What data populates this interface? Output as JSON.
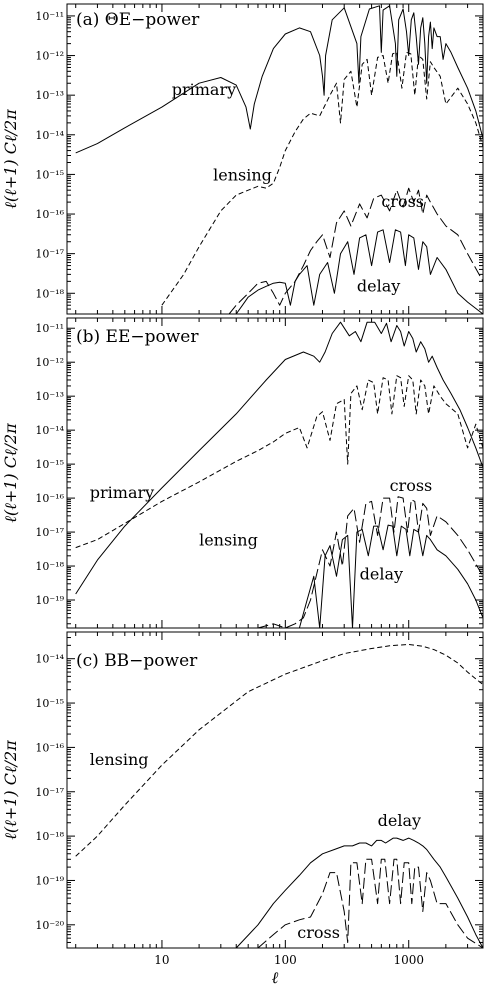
{
  "chart_data": [
    {
      "type": "line",
      "panel_label": "(a) ΘE−power",
      "ylabel": "ℓ(ℓ+1) Cℓ/2π",
      "xlabel": "",
      "xscale": "log",
      "yscale": "log",
      "xlim": [
        1.7,
        4000
      ],
      "ylim": [
        3e-19,
        2e-11
      ],
      "yticks": [
        1e-18,
        1e-17,
        1e-16,
        1e-15,
        1e-14,
        1e-13,
        1e-12,
        1e-11
      ],
      "ytick_labels": [
        "10⁻¹⁸",
        "10⁻¹⁷",
        "10⁻¹⁶",
        "10⁻¹⁵",
        "10⁻¹⁴",
        "10⁻¹³",
        "10⁻¹²",
        "10⁻¹¹"
      ],
      "series": [
        {
          "name": "primary",
          "style": "solid",
          "x": [
            2,
            3,
            5,
            10,
            20,
            30,
            40,
            48,
            52,
            56,
            65,
            80,
            100,
            130,
            160,
            190,
            200,
            206,
            212,
            240,
            300,
            380,
            395,
            410,
            480,
            580,
            600,
            620,
            700,
            780,
            800,
            830,
            900,
            960,
            1000,
            1050,
            1100,
            1150,
            1200,
            1250,
            1300,
            1350,
            1400,
            1450,
            1500,
            1550,
            1600,
            1700,
            1800,
            1900,
            2000,
            2200,
            2500,
            3000,
            3500,
            4000
          ],
          "y": [
            3.5e-15,
            6e-15,
            1.5e-14,
            5e-14,
            2e-13,
            2.8e-13,
            1.8e-13,
            5e-14,
            1.4e-14,
            6e-14,
            3e-13,
            1.5e-12,
            3.5e-12,
            5e-12,
            4e-12,
            1e-12,
            3e-13,
            1e-13,
            1e-12,
            8e-12,
            1.6e-11,
            2e-12,
            2e-13,
            3e-12,
            1.5e-11,
            1.8e-11,
            1.2e-12,
            1.4e-11,
            1.8e-11,
            2e-12,
            3e-13,
            8e-12,
            1.5e-11,
            4e-12,
            1e-12,
            8e-12,
            1.2e-11,
            3e-12,
            6e-13,
            5e-12,
            9e-12,
            2e-12,
            2e-13,
            3e-12,
            7e-12,
            1.5e-12,
            5e-12,
            3e-12,
            3e-12,
            8e-13,
            2e-12,
            1.2e-12,
            5e-13,
            1.5e-13,
            4e-14,
            8e-15
          ]
        },
        {
          "name": "lensing",
          "style": "dashed",
          "x": [
            10,
            15,
            20,
            30,
            40,
            50,
            60,
            70,
            80,
            90,
            100,
            120,
            140,
            160,
            190,
            230,
            260,
            280,
            300,
            340,
            380,
            420,
            460,
            500,
            560,
            620,
            680,
            740,
            800,
            880,
            960,
            1040,
            1120,
            1200,
            1300,
            1400,
            1500,
            1600,
            1800,
            2000,
            2500,
            3000,
            3500,
            4000
          ],
          "y": [
            5e-19,
            3e-18,
            1.5e-17,
            1.2e-16,
            3e-16,
            4e-16,
            5e-16,
            4.5e-16,
            6e-16,
            1.5e-15,
            4e-15,
            1.2e-14,
            2.5e-14,
            3.5e-14,
            3e-14,
            1e-13,
            2e-13,
            2e-14,
            2.5e-13,
            4e-13,
            5e-14,
            6e-13,
            8e-13,
            1e-13,
            9e-13,
            1e-12,
            2e-13,
            1.1e-12,
            1.2e-12,
            1.5e-13,
            1.2e-12,
            1.1e-12,
            1e-13,
            1e-12,
            8e-13,
            8e-14,
            7e-13,
            5e-13,
            3e-13,
            6e-14,
            1.5e-13,
            6e-14,
            2e-14,
            5e-15
          ]
        },
        {
          "name": "cross",
          "style": "long-dashed",
          "x": [
            35,
            40,
            50,
            60,
            70,
            80,
            90,
            100,
            120,
            140,
            160,
            180,
            200,
            230,
            260,
            300,
            340,
            400,
            460,
            520,
            600,
            700,
            800,
            900,
            1000,
            1100,
            1200,
            1300,
            1400,
            1500,
            1700,
            2000,
            2500,
            3000,
            4000
          ],
          "y": [
            3e-19,
            5e-19,
            1e-18,
            1.8e-18,
            2e-18,
            1e-18,
            5e-19,
            1e-18,
            2e-18,
            5e-18,
            1.2e-17,
            2e-17,
            3e-17,
            8e-18,
            6e-17,
            1.2e-16,
            5e-17,
            1.8e-16,
            8e-17,
            2.5e-16,
            3e-16,
            1.2e-16,
            4e-16,
            1.5e-16,
            4.5e-16,
            2e-16,
            4e-16,
            1e-16,
            3e-16,
            2e-16,
            1e-16,
            5e-17,
            3e-17,
            1e-17,
            2e-18
          ]
        },
        {
          "name": "delay",
          "style": "solid",
          "x": [
            40,
            45,
            50,
            60,
            70,
            80,
            90,
            100,
            110,
            120,
            130,
            150,
            170,
            190,
            220,
            250,
            280,
            320,
            360,
            400,
            450,
            500,
            560,
            620,
            700,
            780,
            860,
            940,
            1000,
            1100,
            1200,
            1300,
            1400,
            1500,
            1700,
            2000,
            2500,
            3000,
            4000
          ],
          "y": [
            3e-19,
            5e-19,
            8e-19,
            1.2e-18,
            1.5e-18,
            1.8e-18,
            1.9e-18,
            1.8e-18,
            5e-19,
            2e-18,
            3e-18,
            5e-18,
            5e-19,
            3e-18,
            6e-18,
            1e-18,
            1e-17,
            2e-17,
            3e-18,
            2.5e-17,
            3e-17,
            5e-18,
            3.5e-17,
            4e-17,
            6e-18,
            4e-17,
            3.5e-17,
            5e-18,
            3e-17,
            2.5e-17,
            4e-18,
            2e-17,
            1.5e-17,
            3e-18,
            8e-18,
            4e-18,
            1e-18,
            6e-19,
            3e-19
          ]
        }
      ],
      "annotations": [
        {
          "text": "primary",
          "x": 12,
          "y": 1e-13
        },
        {
          "text": "lensing",
          "x": 26,
          "y": 7e-16
        },
        {
          "text": "cross",
          "x": 600,
          "y": 1.5e-16
        },
        {
          "text": "delay",
          "x": 380,
          "y": 1.1e-18
        }
      ]
    },
    {
      "type": "line",
      "panel_label": "(b) EE−power",
      "ylabel": "ℓ(ℓ+1) Cℓ/2π",
      "xlabel": "",
      "xscale": "log",
      "yscale": "log",
      "xlim": [
        1.7,
        4000
      ],
      "ylim": [
        1.5e-20,
        2e-11
      ],
      "yticks": [
        1e-19,
        1e-18,
        1e-17,
        1e-16,
        1e-15,
        1e-14,
        1e-13,
        1e-12,
        1e-11
      ],
      "ytick_labels": [
        "10⁻¹⁹",
        "10⁻¹⁸",
        "10⁻¹⁷",
        "10⁻¹⁶",
        "10⁻¹⁵",
        "10⁻¹⁴",
        "10⁻¹³",
        "10⁻¹²",
        "10⁻¹¹"
      ],
      "series": [
        {
          "name": "primary",
          "style": "solid",
          "x": [
            2,
            3,
            5,
            10,
            20,
            40,
            70,
            100,
            140,
            170,
            190,
            210,
            240,
            280,
            330,
            370,
            410,
            460,
            530,
            600,
            660,
            720,
            800,
            860,
            920,
            1000,
            1080,
            1150,
            1250,
            1350,
            1450,
            1550,
            1700,
            1900,
            2200,
            2600,
            3000,
            3500,
            4000
          ],
          "y": [
            1.5e-19,
            1.5e-18,
            1.5e-17,
            2e-16,
            2.5e-15,
            3e-14,
            3e-13,
            1.2e-12,
            2e-12,
            1.5e-12,
            1e-12,
            2e-12,
            7e-12,
            1.5e-11,
            6e-12,
            8e-12,
            4e-12,
            1.5e-11,
            1.5e-11,
            7e-12,
            1.4e-11,
            4e-12,
            1.2e-11,
            8e-12,
            3e-12,
            8e-12,
            5e-12,
            2e-12,
            4e-12,
            2.5e-12,
            1e-12,
            1.5e-12,
            7e-13,
            3e-13,
            1.2e-13,
            4e-14,
            1.2e-14,
            3e-15,
            8e-16
          ]
        },
        {
          "name": "lensing",
          "style": "dashed",
          "x": [
            2,
            3,
            5,
            10,
            20,
            40,
            60,
            80,
            100,
            130,
            150,
            180,
            200,
            230,
            260,
            300,
            320,
            340,
            380,
            420,
            470,
            520,
            560,
            620,
            680,
            730,
            800,
            860,
            920,
            1000,
            1080,
            1150,
            1250,
            1350,
            1450,
            1600,
            1800,
            2000,
            2500,
            3000,
            3500,
            4000
          ],
          "y": [
            3.5e-18,
            6e-18,
            1.8e-17,
            8e-17,
            3e-16,
            1.2e-15,
            2.5e-15,
            4.5e-15,
            8e-15,
            1.2e-14,
            3e-15,
            2.5e-14,
            3.5e-14,
            5e-15,
            6e-14,
            8e-14,
            1e-15,
            1.2e-13,
            2e-13,
            4e-14,
            3e-13,
            2.5e-13,
            3e-14,
            3.5e-13,
            3e-13,
            3e-14,
            4e-13,
            3.5e-13,
            5e-14,
            4e-13,
            3e-13,
            3e-14,
            3e-13,
            2e-13,
            3e-14,
            2e-13,
            1e-13,
            6e-14,
            3e-14,
            3e-15,
            1.5e-14,
            3e-15
          ]
        },
        {
          "name": "cross",
          "style": "long-dashed",
          "x": [
            45,
            60,
            80,
            100,
            120,
            140,
            160,
            180,
            200,
            230,
            260,
            290,
            320,
            360,
            400,
            450,
            500,
            560,
            620,
            700,
            760,
            820,
            900,
            980,
            1050,
            1120,
            1200,
            1300,
            1400,
            1500,
            1700,
            2000,
            2500,
            3000,
            4000
          ],
          "y": [
            1.5e-20,
            1.5e-20,
            2e-20,
            1.5e-20,
            2e-20,
            3e-20,
            1e-19,
            6e-19,
            3e-18,
            1e-18,
            1e-17,
            1e-18,
            3e-17,
            5e-17,
            5e-18,
            7e-17,
            8e-17,
            8e-18,
            1e-16,
            1e-16,
            1e-17,
            1.1e-16,
            1e-16,
            1e-17,
            9e-17,
            8e-17,
            1e-17,
            7e-17,
            5e-17,
            8e-18,
            3e-17,
            2e-17,
            8e-18,
            3e-18,
            5e-19
          ]
        },
        {
          "name": "delay",
          "style": "solid",
          "x": [
            130,
            150,
            170,
            190,
            210,
            230,
            260,
            290,
            320,
            350,
            380,
            420,
            470,
            520,
            560,
            620,
            680,
            740,
            800,
            870,
            950,
            1020,
            1100,
            1200,
            1300,
            1400,
            1500,
            1700,
            2000,
            2500,
            3000,
            3500,
            4000
          ],
          "y": [
            1.5e-20,
            1e-19,
            5e-19,
            1.5e-20,
            2e-18,
            4e-18,
            5e-19,
            6e-18,
            8e-18,
            1.5e-20,
            1e-17,
            1.2e-17,
            2e-18,
            1.5e-17,
            1.5e-17,
            3e-18,
            1.6e-17,
            1.5e-17,
            2e-18,
            1.5e-17,
            1.2e-17,
            2e-18,
            1.2e-17,
            1e-17,
            2e-18,
            8e-18,
            6e-18,
            3e-18,
            2e-18,
            8e-19,
            3e-19,
            1e-19,
            3e-20
          ]
        }
      ],
      "annotations": [
        {
          "text": "primary",
          "x": 2.6,
          "y": 1e-16
        },
        {
          "text": "lensing",
          "x": 20,
          "y": 4e-18
        },
        {
          "text": "cross",
          "x": 700,
          "y": 1.6e-16
        },
        {
          "text": "delay",
          "x": 400,
          "y": 4e-19
        }
      ]
    },
    {
      "type": "line",
      "panel_label": "(c) BB−power",
      "ylabel": "ℓ(ℓ+1) Cℓ/2π",
      "xlabel": "ℓ",
      "xscale": "log",
      "yscale": "log",
      "xlim": [
        1.7,
        4000
      ],
      "ylim": [
        3e-21,
        4e-14
      ],
      "xticks": [
        10,
        100,
        1000
      ],
      "xtick_labels": [
        "10",
        "100",
        "1000"
      ],
      "yticks": [
        1e-20,
        1e-19,
        1e-18,
        1e-17,
        1e-16,
        1e-15,
        1e-14
      ],
      "ytick_labels": [
        "10⁻²⁰",
        "10⁻¹⁹",
        "10⁻¹⁸",
        "10⁻¹⁷",
        "10⁻¹⁶",
        "10⁻¹⁵",
        "10⁻¹⁴"
      ],
      "series": [
        {
          "name": "lensing",
          "style": "dashed",
          "x": [
            2,
            3,
            5,
            10,
            20,
            50,
            100,
            200,
            300,
            500,
            700,
            1000,
            1300,
            1600,
            2000,
            2500,
            3000,
            3500,
            4000
          ],
          "y": [
            3.5e-19,
            1e-18,
            5e-18,
            4e-17,
            2.5e-16,
            1.8e-15,
            4.5e-15,
            9e-15,
            1.3e-14,
            1.7e-14,
            1.95e-14,
            2.1e-14,
            1.9e-14,
            1.6e-14,
            1.2e-14,
            8e-15,
            5e-15,
            3.5e-15,
            2.6e-15
          ]
        },
        {
          "name": "delay",
          "style": "solid",
          "x": [
            40,
            60,
            80,
            100,
            130,
            160,
            200,
            250,
            300,
            350,
            400,
            450,
            500,
            550,
            600,
            650,
            700,
            750,
            800,
            900,
            1000,
            1100,
            1200,
            1300,
            1400,
            1600,
            1800,
            2000,
            2500,
            3000,
            3500,
            4000
          ],
          "y": [
            3e-21,
            1e-20,
            3e-20,
            6e-20,
            1.3e-19,
            2.5e-19,
            4e-19,
            5e-19,
            6e-19,
            6e-19,
            7e-19,
            7e-19,
            6e-19,
            8e-19,
            8e-19,
            7e-19,
            8e-19,
            9e-19,
            9e-19,
            8e-19,
            9e-19,
            8e-19,
            7e-19,
            6e-19,
            5e-19,
            3e-19,
            2e-19,
            1.2e-19,
            4e-20,
            1.5e-20,
            6e-21,
            3e-21
          ]
        },
        {
          "name": "cross",
          "style": "long-dashed",
          "x": [
            60,
            80,
            100,
            130,
            160,
            200,
            230,
            260,
            300,
            320,
            340,
            380,
            420,
            450,
            500,
            560,
            600,
            640,
            700,
            760,
            800,
            860,
            920,
            1000,
            1060,
            1120,
            1200,
            1300,
            1400,
            1500,
            1700,
            2000,
            2500,
            3000,
            4000
          ],
          "y": [
            3e-21,
            6e-21,
            1e-20,
            1.3e-20,
            1.5e-20,
            5e-20,
            1.5e-19,
            1.5e-19,
            2e-20,
            4e-21,
            2.5e-19,
            2.5e-19,
            3e-20,
            3e-19,
            3e-19,
            3e-20,
            3e-19,
            3e-19,
            3e-20,
            3e-19,
            3e-19,
            3e-20,
            2.5e-19,
            2.5e-19,
            3e-20,
            2e-19,
            2e-19,
            2e-20,
            1.5e-19,
            1e-19,
            3e-20,
            3e-20,
            1e-20,
            5e-21,
            3e-21
          ]
        }
      ],
      "annotations": [
        {
          "text": "lensing",
          "x": 2.6,
          "y": 4e-17
        },
        {
          "text": "delay",
          "x": 560,
          "y": 1.7e-18
        },
        {
          "text": "cross",
          "x": 125,
          "y": 5e-21
        }
      ]
    }
  ]
}
